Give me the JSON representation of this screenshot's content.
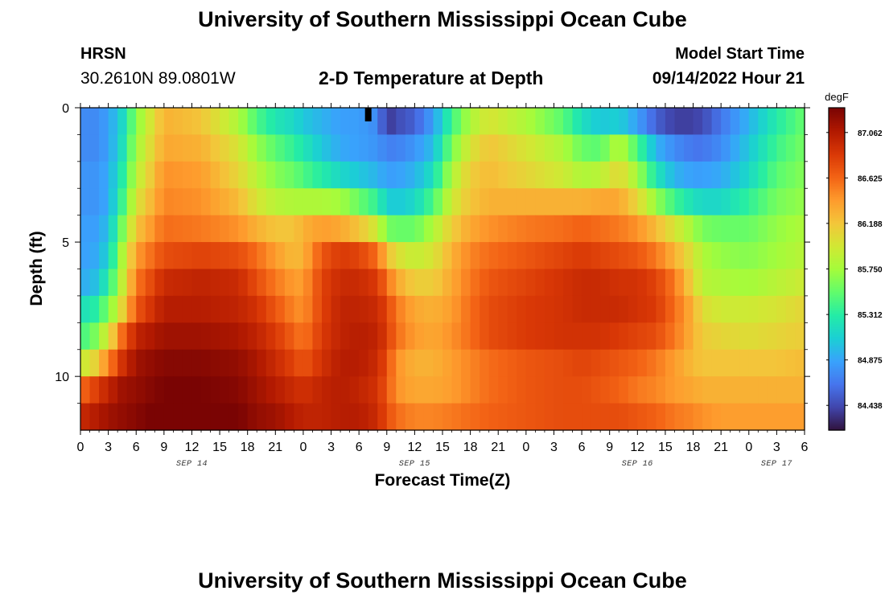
{
  "header": {
    "title": "University of Southern Mississippi Ocean Cube",
    "station": "HRSN",
    "coords": "30.2610N  89.0801W",
    "subtitle": "2-D Temperature at Depth",
    "model_start_label": "Model Start Time",
    "model_start_value": "09/14/2022 Hour 21"
  },
  "footer": {
    "title": "University of Southern Mississippi Ocean Cube"
  },
  "chart_data": {
    "type": "heatmap",
    "title": "2-D Temperature at Depth",
    "xlabel": "Forecast Time(Z)",
    "ylabel": "Depth (ft)",
    "x_unit": "hours since 2022-09-14 00Z",
    "xlim": [
      0,
      78
    ],
    "ylim": [
      0,
      12
    ],
    "x_ticks": [
      0,
      3,
      6,
      9,
      12,
      15,
      18,
      21,
      24,
      27,
      30,
      33,
      36,
      39,
      42,
      45,
      48,
      51,
      54,
      57,
      60,
      63,
      66,
      69,
      72,
      75,
      78
    ],
    "x_tick_labels": [
      "0",
      "3",
      "6",
      "9",
      "12",
      "15",
      "18",
      "21",
      "0",
      "3",
      "6",
      "9",
      "12",
      "15",
      "18",
      "21",
      "0",
      "3",
      "6",
      "9",
      "12",
      "15",
      "18",
      "21",
      "0",
      "3",
      "6"
    ],
    "y_ticks": [
      0,
      5,
      10
    ],
    "y_tick_labels": [
      "0",
      "5",
      "10"
    ],
    "date_labels": [
      {
        "x": 12,
        "label": "SEP 14"
      },
      {
        "x": 36,
        "label": "SEP 15"
      },
      {
        "x": 60,
        "label": "SEP 16"
      },
      {
        "x": 75,
        "label": "SEP 17"
      }
    ],
    "colorbar": {
      "unit": "degF",
      "range": [
        84.2,
        87.3
      ],
      "ticks": [
        84.438,
        84.875,
        85.312,
        85.75,
        86.188,
        86.625,
        87.062
      ],
      "tick_labels": [
        "84.438",
        "84.875",
        "85.312",
        "85.750",
        "86.188",
        "86.625",
        "87.062"
      ],
      "colors": [
        "#30123b",
        "#4145ab",
        "#4675ed",
        "#39a2fc",
        "#1bcfd4",
        "#24eca6",
        "#61fc6c",
        "#a4fc3b",
        "#d1e834",
        "#f3c63a",
        "#fe9b2d",
        "#f36315",
        "#d93806",
        "#b11901",
        "#7a0403"
      ]
    },
    "depths": [
      0.5,
      1.5,
      2.5,
      3.5,
      4.5,
      5.5,
      6.5,
      7.5,
      8.5,
      9.5,
      10.5,
      11.5
    ],
    "key_times": [
      0,
      1.5,
      3,
      4.5,
      6,
      9,
      13,
      17,
      19,
      21,
      23,
      24,
      26,
      28,
      30,
      32,
      33,
      34,
      36,
      38,
      40,
      42,
      44,
      48,
      52,
      54,
      56,
      58,
      60,
      62,
      64,
      66,
      67,
      69,
      72,
      75,
      78
    ],
    "key_values": [
      [
        84.75,
        84.75,
        84.85,
        85.15,
        85.65,
        86.3,
        86.2,
        85.8,
        85.45,
        85.25,
        85.15,
        85.05,
        84.95,
        84.85,
        84.85,
        84.75,
        84.35,
        84.45,
        84.55,
        84.85,
        85.4,
        85.8,
        86.0,
        85.8,
        85.5,
        85.2,
        85.05,
        85.1,
        84.85,
        84.55,
        84.4,
        84.4,
        84.45,
        84.65,
        84.95,
        85.3,
        85.55
      ],
      [
        84.75,
        84.75,
        84.85,
        85.2,
        85.75,
        86.35,
        86.3,
        86.0,
        85.7,
        85.5,
        85.35,
        85.25,
        85.05,
        84.9,
        84.85,
        84.8,
        84.7,
        84.7,
        84.8,
        85.0,
        85.6,
        86.0,
        86.2,
        86.0,
        85.8,
        85.55,
        85.5,
        85.85,
        85.45,
        84.95,
        84.75,
        84.65,
        84.65,
        84.75,
        85.05,
        85.4,
        85.6
      ],
      [
        84.8,
        84.8,
        84.9,
        85.3,
        85.85,
        86.45,
        86.4,
        86.1,
        85.85,
        85.65,
        85.55,
        85.45,
        85.3,
        85.15,
        85.05,
        84.95,
        84.85,
        84.85,
        84.95,
        85.2,
        85.8,
        86.15,
        86.25,
        86.1,
        85.95,
        85.8,
        85.85,
        86.1,
        85.75,
        85.25,
        84.95,
        84.85,
        84.85,
        84.9,
        85.15,
        85.5,
        85.65
      ],
      [
        84.8,
        84.8,
        84.9,
        85.4,
        86.0,
        86.5,
        86.45,
        86.25,
        86.0,
        85.85,
        85.8,
        85.8,
        85.8,
        85.75,
        85.55,
        85.35,
        85.1,
        85.05,
        85.15,
        85.45,
        85.95,
        86.2,
        86.3,
        86.3,
        86.3,
        86.3,
        86.35,
        86.35,
        86.1,
        85.7,
        85.4,
        85.2,
        85.15,
        85.15,
        85.35,
        85.6,
        85.7
      ],
      [
        84.85,
        84.85,
        85.0,
        85.6,
        86.2,
        86.6,
        86.55,
        86.45,
        86.3,
        86.2,
        86.2,
        86.3,
        86.4,
        86.35,
        86.2,
        85.95,
        85.6,
        85.55,
        85.55,
        85.8,
        86.15,
        86.35,
        86.45,
        86.55,
        86.6,
        86.65,
        86.6,
        86.55,
        86.45,
        86.25,
        86.0,
        85.75,
        85.6,
        85.55,
        85.55,
        85.7,
        85.8
      ],
      [
        84.85,
        84.9,
        85.1,
        85.8,
        86.4,
        86.75,
        86.8,
        86.75,
        86.6,
        86.4,
        86.25,
        86.3,
        86.7,
        86.85,
        86.8,
        86.6,
        86.25,
        86.05,
        85.9,
        86.0,
        86.3,
        86.5,
        86.6,
        86.7,
        86.8,
        86.85,
        86.8,
        86.75,
        86.7,
        86.55,
        86.3,
        86.0,
        85.8,
        85.7,
        85.65,
        85.75,
        85.85
      ],
      [
        84.9,
        85.0,
        85.3,
        85.9,
        86.55,
        86.95,
        87.0,
        86.95,
        86.75,
        86.55,
        86.4,
        86.4,
        86.8,
        86.95,
        86.95,
        86.85,
        86.6,
        86.35,
        86.15,
        86.15,
        86.35,
        86.55,
        86.7,
        86.8,
        86.9,
        86.95,
        86.95,
        86.9,
        86.9,
        86.8,
        86.55,
        86.1,
        85.85,
        85.8,
        85.75,
        85.85,
        85.95
      ],
      [
        85.2,
        85.3,
        85.6,
        86.1,
        86.7,
        87.05,
        87.05,
        87.0,
        86.9,
        86.7,
        86.5,
        86.45,
        86.8,
        87.0,
        87.0,
        86.95,
        86.8,
        86.55,
        86.35,
        86.3,
        86.4,
        86.6,
        86.75,
        86.85,
        86.9,
        86.95,
        86.95,
        86.95,
        86.9,
        86.85,
        86.6,
        86.3,
        86.05,
        85.95,
        85.95,
        86.0,
        86.1
      ],
      [
        85.4,
        85.6,
        86.0,
        86.6,
        87.0,
        87.15,
        87.15,
        87.1,
        87.0,
        86.85,
        86.65,
        86.55,
        86.85,
        87.0,
        87.05,
        87.0,
        86.85,
        86.6,
        86.4,
        86.35,
        86.45,
        86.6,
        86.75,
        86.85,
        86.9,
        86.9,
        86.9,
        86.85,
        86.8,
        86.75,
        86.55,
        86.3,
        86.15,
        86.1,
        86.05,
        86.1,
        86.15
      ],
      [
        85.9,
        86.1,
        86.5,
        86.9,
        87.15,
        87.25,
        87.25,
        87.2,
        87.1,
        86.95,
        86.8,
        86.7,
        86.9,
        87.05,
        87.05,
        86.95,
        86.75,
        86.45,
        86.3,
        86.3,
        86.4,
        86.5,
        86.6,
        86.7,
        86.75,
        86.8,
        86.75,
        86.7,
        86.65,
        86.55,
        86.4,
        86.25,
        86.2,
        86.2,
        86.2,
        86.2,
        86.25
      ],
      [
        86.6,
        86.8,
        87.0,
        87.15,
        87.2,
        87.3,
        87.3,
        87.25,
        87.15,
        87.05,
        86.95,
        86.9,
        87.0,
        87.05,
        87.0,
        86.9,
        86.7,
        86.45,
        86.35,
        86.35,
        86.4,
        86.5,
        86.6,
        86.7,
        86.75,
        86.75,
        86.7,
        86.65,
        86.55,
        86.5,
        86.4,
        86.35,
        86.3,
        86.3,
        86.3,
        86.3,
        86.3
      ],
      [
        86.95,
        87.05,
        87.15,
        87.2,
        87.25,
        87.35,
        87.35,
        87.3,
        87.2,
        87.15,
        87.05,
        87.0,
        87.0,
        87.05,
        87.05,
        86.95,
        86.75,
        86.6,
        86.5,
        86.5,
        86.55,
        86.6,
        86.65,
        86.7,
        86.75,
        86.75,
        86.75,
        86.75,
        86.7,
        86.65,
        86.55,
        86.5,
        86.45,
        86.4,
        86.4,
        86.4,
        86.4
      ]
    ],
    "max_depth_marker": {
      "x": 31,
      "label": ""
    }
  }
}
